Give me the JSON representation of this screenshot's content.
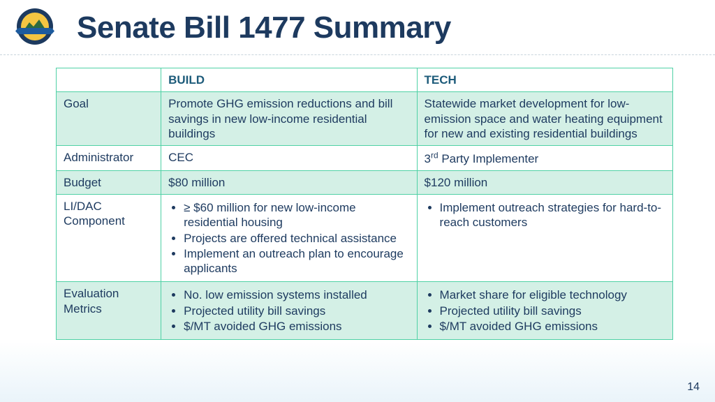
{
  "title": "Senate Bill 1477 Summary",
  "page_number": "14",
  "colors": {
    "text": "#1d3a5f",
    "header_text": "#1d5b7a",
    "border": "#4fd1a5",
    "shaded_row_bg": "#d4f0e6",
    "plain_row_bg": "#ffffff"
  },
  "table": {
    "columns": [
      "",
      "BUILD",
      "TECH"
    ],
    "column_widths_pct": [
      17,
      41.5,
      41.5
    ],
    "rows": [
      {
        "shaded": true,
        "label": "Goal",
        "build": {
          "type": "text",
          "text": "Promote GHG emission reductions and bill savings in new low-income residential buildings"
        },
        "tech": {
          "type": "text",
          "text": "Statewide market development for low-emission space and water heating equipment for new and existing residential buildings"
        }
      },
      {
        "shaded": false,
        "label": "Administrator",
        "build": {
          "type": "text",
          "text": "CEC"
        },
        "tech": {
          "type": "html",
          "html": "3<sup>rd</sup> Party Implementer"
        }
      },
      {
        "shaded": true,
        "label": "Budget",
        "build": {
          "type": "text",
          "text": "$80 million"
        },
        "tech": {
          "type": "text",
          "text": "$120 million"
        }
      },
      {
        "shaded": false,
        "label": "LI/DAC Component",
        "build": {
          "type": "list",
          "items": [
            "≥ $60 million for new low-income residential housing",
            "Projects are offered technical assistance",
            "Implement an outreach plan to encourage applicants"
          ]
        },
        "tech": {
          "type": "list",
          "items": [
            "Implement outreach strategies for hard-to-reach customers"
          ]
        }
      },
      {
        "shaded": true,
        "label": "Evaluation Metrics",
        "build": {
          "type": "list",
          "items": [
            "No. low emission systems installed",
            "Projected utility bill savings",
            "$/MT avoided GHG emissions"
          ]
        },
        "tech": {
          "type": "list",
          "items": [
            "Market share for eligible technology",
            "Projected utility bill savings",
            "$/MT avoided GHG emissions"
          ]
        }
      }
    ]
  }
}
